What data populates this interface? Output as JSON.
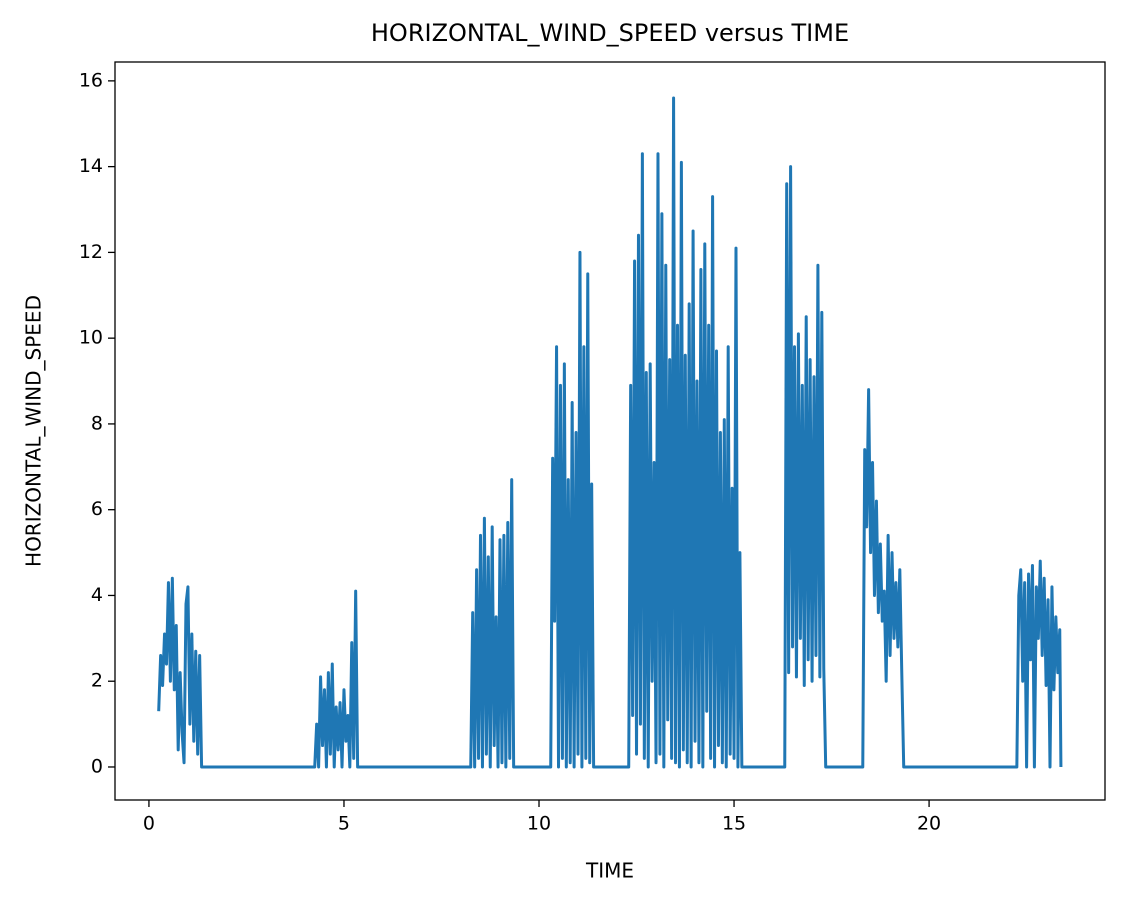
{
  "chart_data": {
    "type": "line",
    "title": "HORIZONTAL_WIND_SPEED versus TIME",
    "x_label": "TIME",
    "y_label": "HORIZONTAL_WIND_SPEED",
    "xlim": [
      -0.87,
      24.51
    ],
    "ylim": [
      -0.77,
      16.44
    ],
    "xticks": [
      0,
      5,
      10,
      15,
      20
    ],
    "yticks": [
      0,
      2,
      4,
      6,
      8,
      10,
      12,
      14,
      16
    ],
    "color": "#1f77b4",
    "x": [
      0.25,
      0.3,
      0.35,
      0.4,
      0.45,
      0.5,
      0.55,
      0.6,
      0.65,
      0.7,
      0.75,
      0.8,
      0.85,
      0.9,
      0.95,
      1.0,
      1.05,
      1.1,
      1.15,
      1.2,
      1.25,
      1.3,
      1.35,
      4.25,
      4.3,
      4.35,
      4.4,
      4.45,
      4.5,
      4.55,
      4.6,
      4.65,
      4.7,
      4.75,
      4.8,
      4.85,
      4.9,
      4.95,
      5.0,
      5.05,
      5.1,
      5.15,
      5.2,
      5.25,
      5.3,
      5.35,
      8.25,
      8.3,
      8.35,
      8.4,
      8.45,
      8.5,
      8.55,
      8.6,
      8.65,
      8.7,
      8.75,
      8.8,
      8.85,
      8.9,
      8.95,
      9.0,
      9.05,
      9.1,
      9.15,
      9.2,
      9.25,
      9.3,
      9.35,
      9.4,
      10.3,
      10.35,
      10.4,
      10.45,
      10.5,
      10.55,
      10.6,
      10.65,
      10.7,
      10.75,
      10.8,
      10.85,
      10.9,
      10.95,
      11.0,
      11.05,
      11.1,
      11.15,
      11.2,
      11.25,
      11.3,
      11.35,
      11.4,
      12.3,
      12.35,
      12.4,
      12.45,
      12.5,
      12.55,
      12.6,
      12.65,
      12.7,
      12.75,
      12.8,
      12.85,
      12.9,
      12.95,
      13.0,
      13.05,
      13.1,
      13.15,
      13.2,
      13.25,
      13.3,
      13.35,
      13.4,
      13.45,
      13.5,
      13.55,
      13.6,
      13.65,
      13.7,
      13.75,
      13.8,
      13.85,
      13.9,
      13.95,
      14.0,
      14.05,
      14.1,
      14.15,
      14.2,
      14.25,
      14.3,
      14.35,
      14.4,
      14.45,
      14.5,
      14.55,
      14.6,
      14.65,
      14.7,
      14.75,
      14.8,
      14.85,
      14.9,
      14.95,
      15.0,
      15.05,
      15.1,
      15.15,
      15.2,
      16.3,
      16.35,
      16.4,
      16.45,
      16.5,
      16.55,
      16.6,
      16.65,
      16.7,
      16.75,
      16.8,
      16.85,
      16.9,
      16.95,
      17.0,
      17.05,
      17.1,
      17.15,
      17.2,
      17.25,
      17.3,
      17.35,
      18.3,
      18.35,
      18.4,
      18.45,
      18.5,
      18.55,
      18.6,
      18.65,
      18.7,
      18.75,
      18.8,
      18.85,
      18.9,
      18.95,
      19.0,
      19.05,
      19.1,
      19.15,
      19.2,
      19.25,
      19.3,
      19.35,
      22.25,
      22.3,
      22.35,
      22.4,
      22.45,
      22.5,
      22.55,
      22.6,
      22.65,
      22.7,
      22.75,
      22.8,
      22.85,
      22.9,
      22.95,
      23.0,
      23.05,
      23.1,
      23.15,
      23.2,
      23.25,
      23.3,
      23.35,
      23.38
    ],
    "values": [
      1.3,
      2.6,
      1.9,
      3.1,
      2.4,
      4.3,
      2.0,
      4.4,
      1.8,
      3.3,
      0.4,
      2.2,
      0.8,
      0.1,
      3.8,
      4.2,
      1.0,
      3.1,
      0.6,
      2.7,
      0.3,
      2.6,
      0,
      0,
      1.0,
      0,
      2.1,
      0.5,
      1.8,
      0,
      2.2,
      0.3,
      2.4,
      0,
      1.4,
      0.4,
      1.5,
      0,
      1.8,
      0.6,
      1.2,
      0,
      2.9,
      0.2,
      4.1,
      0,
      0,
      3.6,
      0,
      4.6,
      0.2,
      5.4,
      0,
      5.8,
      0.3,
      4.9,
      0,
      5.6,
      0.5,
      3.5,
      0,
      5.3,
      0.1,
      5.4,
      0,
      5.7,
      0.2,
      6.7,
      0,
      0,
      0,
      7.2,
      3.4,
      9.8,
      0,
      8.9,
      0.2,
      9.4,
      0,
      6.7,
      0.1,
      8.5,
      0,
      7.8,
      0.3,
      12.0,
      0,
      9.8,
      0.2,
      11.5,
      0.1,
      6.6,
      0,
      0,
      8.9,
      1.2,
      11.8,
      0.3,
      12.4,
      1.0,
      14.3,
      0.2,
      9.2,
      0,
      9.4,
      2.0,
      7.1,
      0.1,
      14.3,
      0.3,
      12.9,
      0,
      11.7,
      1.1,
      9.5,
      0.2,
      15.6,
      0.1,
      10.3,
      0,
      14.1,
      0.4,
      9.6,
      0.1,
      10.8,
      0,
      12.5,
      0.6,
      9.0,
      0.1,
      11.6,
      0,
      12.2,
      1.3,
      10.3,
      0.2,
      13.3,
      0,
      9.7,
      0.5,
      7.8,
      0.1,
      8.1,
      0,
      9.8,
      0.3,
      6.5,
      0.2,
      12.1,
      0,
      5.0,
      0,
      0,
      13.6,
      2.2,
      14.0,
      2.8,
      9.8,
      2.1,
      10.1,
      3.0,
      8.9,
      1.9,
      10.5,
      2.5,
      9.5,
      2.0,
      9.1,
      2.6,
      11.7,
      2.1,
      10.6,
      2.3,
      0,
      0,
      7.4,
      5.6,
      8.8,
      5.0,
      7.1,
      4.0,
      6.2,
      3.6,
      5.2,
      3.4,
      4.1,
      2.0,
      5.4,
      2.6,
      5.0,
      3.0,
      4.3,
      2.8,
      4.6,
      2.2,
      0,
      0,
      4.0,
      4.6,
      2.0,
      4.3,
      0,
      4.5,
      2.5,
      4.7,
      0,
      4.2,
      3.0,
      4.8,
      2.6,
      4.4,
      1.9,
      3.9,
      0,
      4.2,
      1.8,
      3.5,
      2.2,
      3.2,
      0
    ]
  }
}
